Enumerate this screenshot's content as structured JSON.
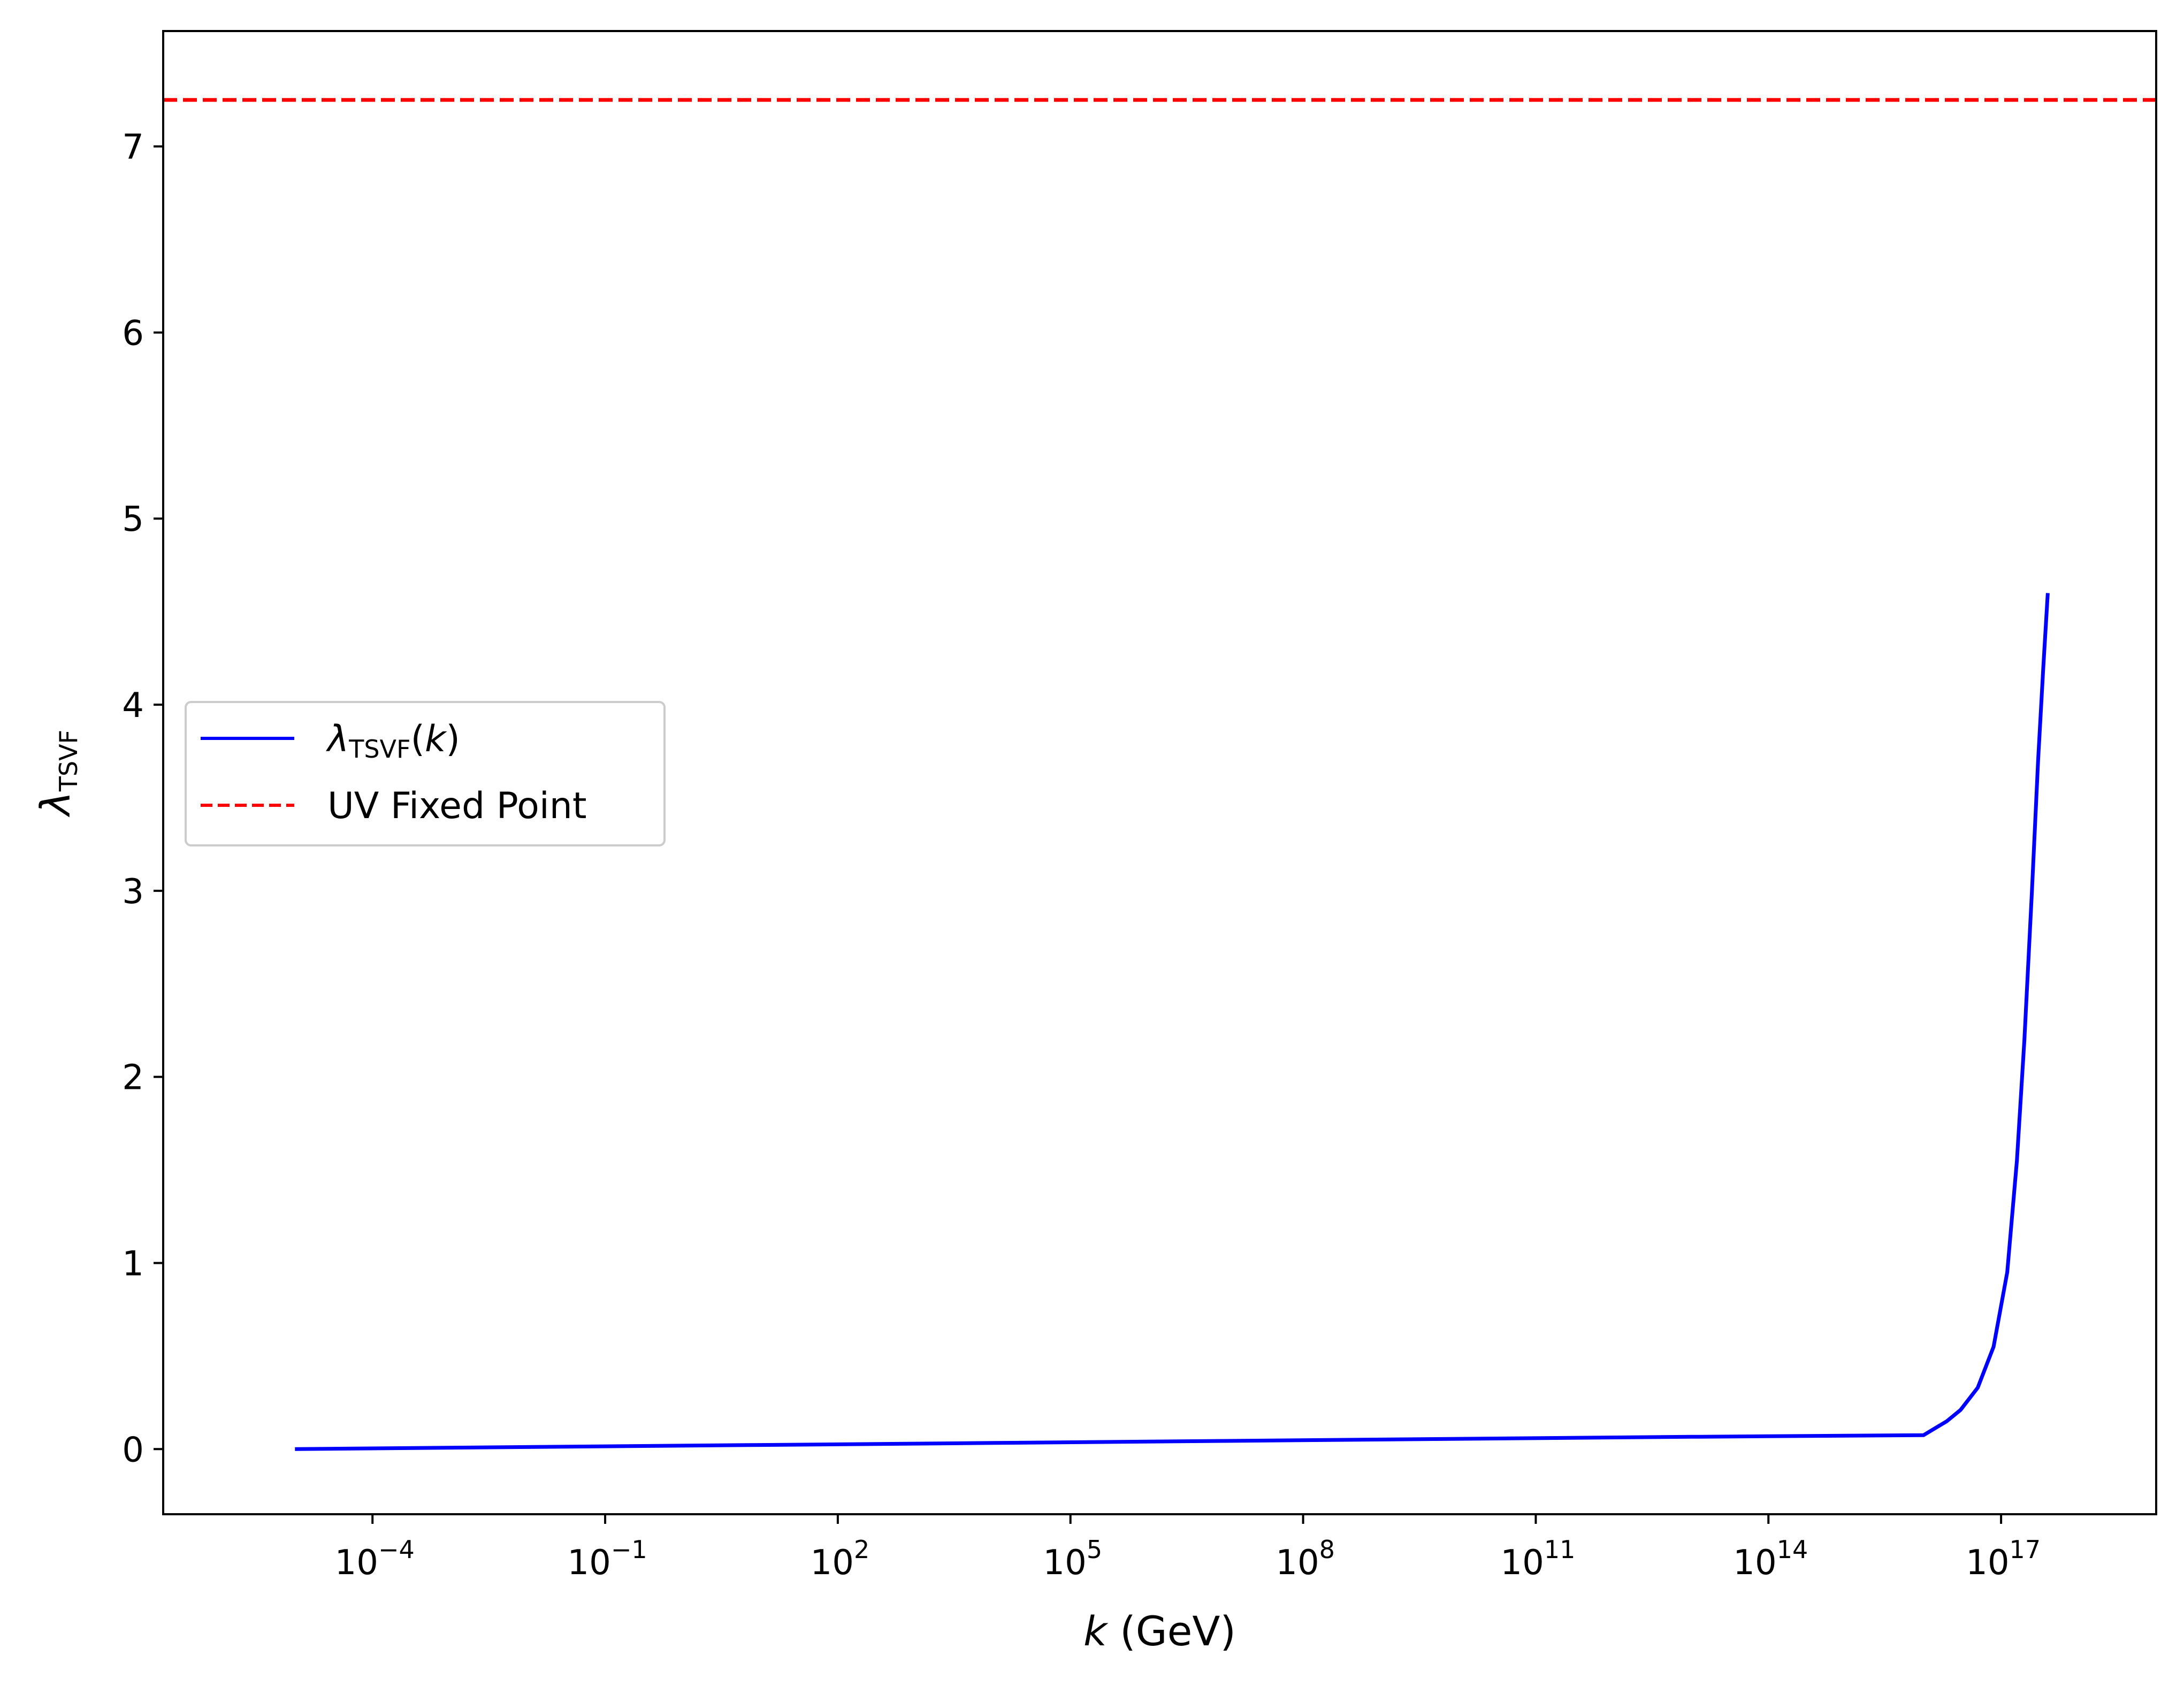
{
  "chart_data": {
    "type": "line",
    "xscale": "log",
    "xlim": [
      2e-07,
      1e+19
    ],
    "ylim": [
      -0.35,
      7.62
    ],
    "xlabel": {
      "italic": "k",
      "rest": " (GeV)"
    },
    "ylabel": {
      "main": "λ",
      "sub": "TSVF"
    },
    "x_ticks": [
      {
        "base": "10",
        "exp": "−4",
        "value": 0.0001
      },
      {
        "base": "10",
        "exp": "−1",
        "value": 0.1
      },
      {
        "base": "10",
        "exp": "2",
        "value": 100
      },
      {
        "base": "10",
        "exp": "5",
        "value": 100000.0
      },
      {
        "base": "10",
        "exp": "8",
        "value": 100000000.0
      },
      {
        "base": "10",
        "exp": "11",
        "value": 100000000000.0
      },
      {
        "base": "10",
        "exp": "14",
        "value": 100000000000000.0
      },
      {
        "base": "10",
        "exp": "17",
        "value": 1e+17
      }
    ],
    "y_ticks": [
      {
        "label": "0",
        "value": 0
      },
      {
        "label": "1",
        "value": 1
      },
      {
        "label": "2",
        "value": 2
      },
      {
        "label": "3",
        "value": 3
      },
      {
        "label": "4",
        "value": 4
      },
      {
        "label": "5",
        "value": 5
      },
      {
        "label": "6",
        "value": 6
      },
      {
        "label": "7",
        "value": 7
      }
    ],
    "grid": false,
    "legend_placement": "center-left",
    "series": [
      {
        "name": "λTSVF(k)",
        "legend": {
          "main": "λ",
          "sub": "TSVF",
          "rest": "(k)"
        },
        "style": "solid",
        "color": "#0000ff",
        "x": [
          1e-05,
          0.01,
          10,
          10000.0,
          10000000.0,
          10000000000.0,
          10000000000000.0,
          1e+16,
          2e+16,
          3e+16,
          5e+16,
          8e+16,
          1.2e+17,
          1.6e+17,
          2e+17,
          2.5e+17,
          3e+17,
          3.5e+17,
          4e+17
        ],
        "y": [
          0.0,
          0.011,
          0.022,
          0.033,
          0.044,
          0.055,
          0.066,
          0.075,
          0.15,
          0.21,
          0.33,
          0.55,
          0.95,
          1.55,
          2.2,
          3.0,
          3.7,
          4.2,
          4.6
        ]
      },
      {
        "name": "UV Fixed Point",
        "legend": {
          "main": "UV Fixed Point"
        },
        "style": "dashed",
        "color": "#ff0000",
        "y_const": 7.25
      }
    ]
  }
}
